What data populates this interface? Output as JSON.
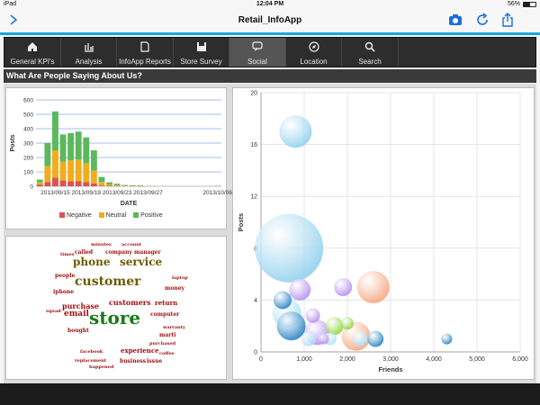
{
  "status_bar": {
    "device": "iPad",
    "time": "12:04 PM",
    "battery": "56%"
  },
  "nav": {
    "title": "Retail_InfoApp",
    "icons": [
      "back-icon",
      "camera-icon",
      "refresh-icon",
      "share-icon"
    ]
  },
  "tabs": [
    {
      "label": "General KPI's",
      "icon": "home-icon"
    },
    {
      "label": "Analysis",
      "icon": "bar-chart-icon"
    },
    {
      "label": "InfoApp Reports",
      "icon": "document-icon"
    },
    {
      "label": "Store Survey",
      "icon": "save-icon"
    },
    {
      "label": "Social",
      "icon": "chat-icon",
      "active": true
    },
    {
      "label": "Location",
      "icon": "compass-icon"
    },
    {
      "label": "Search",
      "icon": "search-icon"
    }
  ],
  "section_title": "What Are People Saying About Us?",
  "word_cloud": [
    {
      "text": "store",
      "size": 20,
      "color": "#1a7a1a",
      "x": 98,
      "y": 360
    },
    {
      "text": "customer",
      "size": 14,
      "color": "#6b5a00",
      "x": 82,
      "y": 318
    },
    {
      "text": "phone",
      "size": 12,
      "color": "#6b5a00",
      "x": 80,
      "y": 295
    },
    {
      "text": "service",
      "size": 12,
      "color": "#6b5a00",
      "x": 132,
      "y": 295
    },
    {
      "text": "purchase",
      "size": 8,
      "color": "#a01010",
      "x": 68,
      "y": 342
    },
    {
      "text": "customers",
      "size": 8,
      "color": "#a01010",
      "x": 120,
      "y": 338
    },
    {
      "text": "email",
      "size": 9,
      "color": "#a01010",
      "x": 70,
      "y": 352
    },
    {
      "text": "experience",
      "size": 7,
      "color": "#a01010",
      "x": 133,
      "y": 391
    },
    {
      "text": "business",
      "size": 6,
      "color": "#a01010",
      "x": 132,
      "y": 403
    },
    {
      "text": "issue",
      "size": 6,
      "color": "#a01010",
      "x": 162,
      "y": 403
    },
    {
      "text": "called",
      "size": 6,
      "color": "#a01010",
      "x": 82,
      "y": 282
    },
    {
      "text": "company",
      "size": 6,
      "color": "#a01010",
      "x": 116,
      "y": 282
    },
    {
      "text": "manager",
      "size": 6,
      "color": "#a01010",
      "x": 148,
      "y": 282
    },
    {
      "text": "minutes",
      "size": 5,
      "color": "#a01010",
      "x": 100,
      "y": 273
    },
    {
      "text": "account",
      "size": 5,
      "color": "#a01010",
      "x": 134,
      "y": 273
    },
    {
      "text": "return",
      "size": 7,
      "color": "#a01010",
      "x": 171,
      "y": 338
    },
    {
      "text": "computer",
      "size": 6,
      "color": "#a01010",
      "x": 166,
      "y": 351
    },
    {
      "text": "money",
      "size": 6,
      "color": "#a01010",
      "x": 182,
      "y": 322
    },
    {
      "text": "iphone",
      "size": 6,
      "color": "#a01010",
      "x": 58,
      "y": 326
    },
    {
      "text": "people",
      "size": 6,
      "color": "#a01010",
      "x": 60,
      "y": 308
    },
    {
      "text": "bought",
      "size": 6,
      "color": "#a01010",
      "x": 74,
      "y": 369
    },
    {
      "text": "marti",
      "size": 6,
      "color": "#a01010",
      "x": 176,
      "y": 374
    },
    {
      "text": "warranty",
      "size": 5,
      "color": "#a01010",
      "x": 180,
      "y": 365
    },
    {
      "text": "purchased",
      "size": 5,
      "color": "#a01010",
      "x": 165,
      "y": 383
    },
    {
      "text": "laptop",
      "size": 5,
      "color": "#a01010",
      "x": 190,
      "y": 310
    },
    {
      "text": "squad",
      "size": 5,
      "color": "#a01010",
      "x": 50,
      "y": 347
    },
    {
      "text": "times",
      "size": 5,
      "color": "#a01010",
      "x": 66,
      "y": 284
    },
    {
      "text": "coffee",
      "size": 5,
      "color": "#a01010",
      "x": 176,
      "y": 394
    },
    {
      "text": "facebook",
      "size": 5,
      "color": "#a01010",
      "x": 88,
      "y": 392
    },
    {
      "text": "replacement",
      "size": 5,
      "color": "#a01010",
      "x": 82,
      "y": 402
    },
    {
      "text": "happened",
      "size": 5,
      "color": "#a01010",
      "x": 98,
      "y": 409
    }
  ],
  "chart_data": [
    {
      "type": "bar",
      "stacked": true,
      "title": "",
      "xlabel": "DATE",
      "ylabel": "Posts",
      "ylim": [
        0,
        600
      ],
      "yticks": [
        0,
        100,
        200,
        300,
        400,
        500,
        600
      ],
      "x_tick_labels": [
        "2013/09/15",
        "2013/09/19",
        "2013/09/23",
        "2013/09/27",
        "2013/10/06"
      ],
      "categories": [
        "09/13",
        "09/14",
        "09/15",
        "09/16",
        "09/17",
        "09/18",
        "09/19",
        "09/20",
        "09/21",
        "09/22",
        "09/23",
        "09/24",
        "09/25",
        "09/26",
        "09/27",
        "09/28",
        "09/29",
        "09/30",
        "10/01",
        "10/02",
        "10/03",
        "10/04",
        "10/05",
        "10/06"
      ],
      "series": [
        {
          "name": "Negative",
          "color": "#d9534f",
          "values": [
            12,
            30,
            60,
            40,
            35,
            35,
            30,
            20,
            5,
            3,
            2,
            1,
            1,
            1,
            0,
            0,
            0,
            0,
            0,
            0,
            0,
            0,
            0,
            0
          ]
        },
        {
          "name": "Neutral",
          "color": "#f0ad1e",
          "values": [
            15,
            110,
            190,
            130,
            145,
            150,
            130,
            90,
            25,
            10,
            6,
            3,
            2,
            2,
            1,
            1,
            1,
            0,
            0,
            0,
            0,
            0,
            0,
            1
          ]
        },
        {
          "name": "Positive",
          "color": "#5cb85c",
          "values": [
            20,
            160,
            270,
            190,
            190,
            195,
            180,
            140,
            35,
            15,
            10,
            5,
            4,
            3,
            2,
            1,
            1,
            1,
            1,
            1,
            1,
            1,
            1,
            2
          ]
        }
      ],
      "legend": "bottom"
    },
    {
      "type": "scatter",
      "bubble": true,
      "title": "",
      "xlabel": "Friends",
      "ylabel": "Posts",
      "xlim": [
        0,
        6000
      ],
      "ylim": [
        0,
        20
      ],
      "xticks": [
        0,
        1000,
        2000,
        3000,
        4000,
        5000,
        6000
      ],
      "yticks": [
        0,
        4,
        8,
        12,
        16,
        20
      ],
      "points": [
        {
          "x": 650,
          "y": 8,
          "r": 38,
          "color": "#8fd0ee"
        },
        {
          "x": 800,
          "y": 17,
          "r": 18,
          "color": "#8fd0ee"
        },
        {
          "x": 600,
          "y": 3,
          "r": 16,
          "color": "#a9e0f5"
        },
        {
          "x": 1300,
          "y": 1.5,
          "r": 14,
          "color": "#b58cf0"
        },
        {
          "x": 900,
          "y": 4.8,
          "r": 12,
          "color": "#b58cf0"
        },
        {
          "x": 1900,
          "y": 5,
          "r": 10,
          "color": "#b58cf0"
        },
        {
          "x": 2600,
          "y": 5,
          "r": 18,
          "color": "#f5a37a"
        },
        {
          "x": 2200,
          "y": 1.2,
          "r": 16,
          "color": "#f5a37a"
        },
        {
          "x": 1200,
          "y": 2.8,
          "r": 8,
          "color": "#b58cf0"
        },
        {
          "x": 500,
          "y": 4,
          "r": 10,
          "color": "#1f7fc0"
        },
        {
          "x": 700,
          "y": 2,
          "r": 16,
          "color": "#1f7fc0"
        },
        {
          "x": 1700,
          "y": 2,
          "r": 10,
          "color": "#8fd43a"
        },
        {
          "x": 2000,
          "y": 2.2,
          "r": 7,
          "color": "#8fd43a"
        },
        {
          "x": 1450,
          "y": 1,
          "r": 6,
          "color": "#b58cf0"
        },
        {
          "x": 1600,
          "y": 1,
          "r": 7,
          "color": "#a9e0f5"
        },
        {
          "x": 2300,
          "y": 1,
          "r": 8,
          "color": "#a9e0f5"
        },
        {
          "x": 2650,
          "y": 1,
          "r": 9,
          "color": "#1f7fc0"
        },
        {
          "x": 1100,
          "y": 1,
          "r": 8,
          "color": "#a9e0f5"
        },
        {
          "x": 4300,
          "y": 1,
          "r": 6,
          "color": "#1f7fc0"
        }
      ]
    }
  ]
}
